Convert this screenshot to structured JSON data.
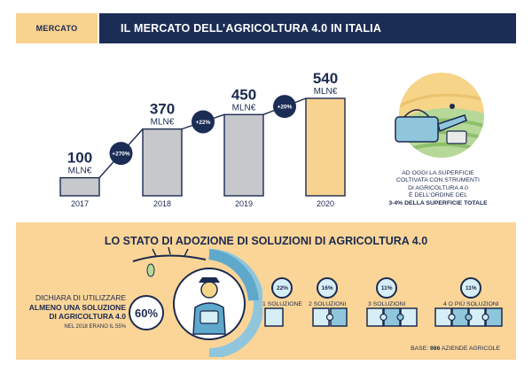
{
  "header": {
    "tag": "MERCATO",
    "title": "IL MERCATO DELL’AGRICOLTURA 4.0 IN ITALIA"
  },
  "chart_data": {
    "type": "bar",
    "categories": [
      "2017",
      "2018",
      "2019",
      "2020"
    ],
    "values": [
      100,
      370,
      450,
      540
    ],
    "value_unit": "MLN€",
    "value_labels": [
      "100",
      "370",
      "450",
      "540"
    ],
    "growth_labels": [
      "+270%",
      "+22%",
      "+20%"
    ],
    "highlight_color": "#f8d28f",
    "bar_color": "#c7c8cb",
    "ylim": [
      0,
      540
    ]
  },
  "land_note": {
    "l1": "AD OGGI LA SUPERFICIE",
    "l2": "COLTIVATA CON STRUMENTI",
    "l3": "DI AGRICOLTURA 4.0",
    "l4": "È DELL’ORDINE DEL",
    "l5": "3-4% DELLA SUPERFICIE TOTALE"
  },
  "adoption": {
    "title": "LO STATO DI ADOZIONE DI SOLUZIONI DI AGRICOLTURA 4.0",
    "declare_l1": "DICHIARA DI UTILIZZARE",
    "declare_l2": "ALMENO UNA SOLUZIONE",
    "declare_l3": "DI AGRICOLTURA 4.0",
    "declare_small": "NEL 2018 ERANO IL 55%",
    "share": "60%",
    "solutions": [
      {
        "pct": "22%",
        "label": "1 SOLUZIONE"
      },
      {
        "pct": "16%",
        "label": "2 SOLUZIONI"
      },
      {
        "pct": "11%",
        "label": "3 SOLUZIONI"
      },
      {
        "pct": "11%",
        "label": "4 O PIÙ SOLUZIONI"
      }
    ],
    "base_prefix": "BASE:",
    "base_number": "986",
    "base_suffix": "AZIENDE AGRICOLE"
  },
  "colors": {
    "navy": "#1b2d55",
    "yellow": "#f8d28f",
    "light_blue": "#d6eef5",
    "mid_blue": "#8fc6dc"
  }
}
